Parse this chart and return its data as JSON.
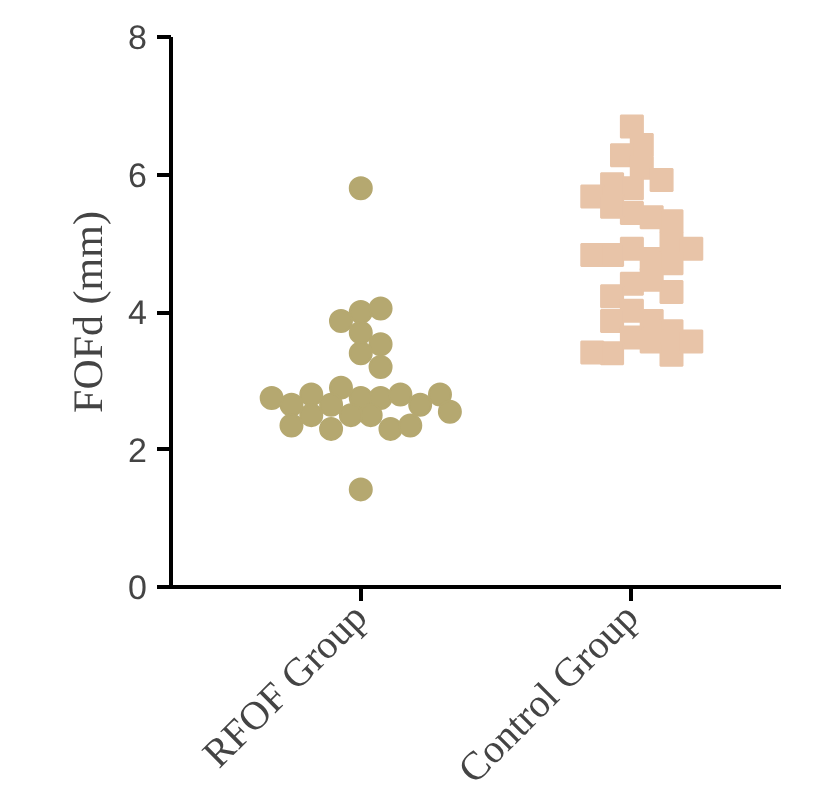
{
  "chart_data": {
    "type": "scatter",
    "ylabel": "FOFd (mm)",
    "categories": [
      "RFOF Group",
      "Control Group"
    ],
    "ylim": [
      0,
      8
    ],
    "yticks": [
      0,
      2,
      4,
      6,
      8
    ],
    "series": [
      {
        "color": "#b5a870",
        "marker": "circle",
        "x": [
          "RFOF Group",
          "RFOF Group",
          "RFOF Group",
          "RFOF Group",
          "RFOF Group",
          "RFOF Group",
          "RFOF Group",
          "RFOF Group",
          "RFOF Group",
          "RFOF Group",
          "RFOF Group",
          "RFOF Group",
          "RFOF Group",
          "RFOF Group",
          "RFOF Group",
          "RFOF Group",
          "RFOF Group",
          "RFOF Group",
          "RFOF Group",
          "RFOF Group",
          "RFOF Group",
          "RFOF Group",
          "RFOF Group",
          "RFOF Group",
          "RFOF Group",
          "RFOF Group",
          "RFOF Group"
        ],
        "values": [
          5.8,
          1.42,
          4.0,
          4.05,
          3.87,
          3.7,
          3.53,
          3.4,
          3.2,
          2.75,
          2.75,
          2.5,
          2.9,
          2.65,
          2.8,
          2.5,
          2.65,
          2.3,
          2.8,
          2.5,
          2.3,
          2.65,
          2.8,
          2.55,
          2.75,
          2.35,
          2.35
        ]
      },
      {
        "color": "#e8c4a8",
        "marker": "square",
        "x": [
          "Control Group",
          "Control Group",
          "Control Group",
          "Control Group",
          "Control Group",
          "Control Group",
          "Control Group",
          "Control Group",
          "Control Group",
          "Control Group",
          "Control Group",
          "Control Group",
          "Control Group",
          "Control Group",
          "Control Group",
          "Control Group",
          "Control Group",
          "Control Group",
          "Control Group",
          "Control Group",
          "Control Group",
          "Control Group",
          "Control Group",
          "Control Group",
          "Control Group",
          "Control Group",
          "Control Group",
          "Control Group",
          "Control Group",
          "Control Group",
          "Control Group",
          "Control Group",
          "Control Group"
        ],
        "values": [
          6.7,
          6.43,
          6.28,
          6.1,
          5.8,
          5.86,
          5.92,
          5.68,
          5.44,
          5.38,
          5.53,
          5.32,
          4.92,
          4.77,
          4.83,
          5.0,
          4.83,
          4.92,
          4.71,
          4.41,
          4.47,
          4.23,
          4.29,
          4.02,
          3.87,
          3.87,
          3.63,
          3.72,
          3.57,
          3.4,
          3.38,
          3.41,
          3.57
        ]
      }
    ]
  }
}
